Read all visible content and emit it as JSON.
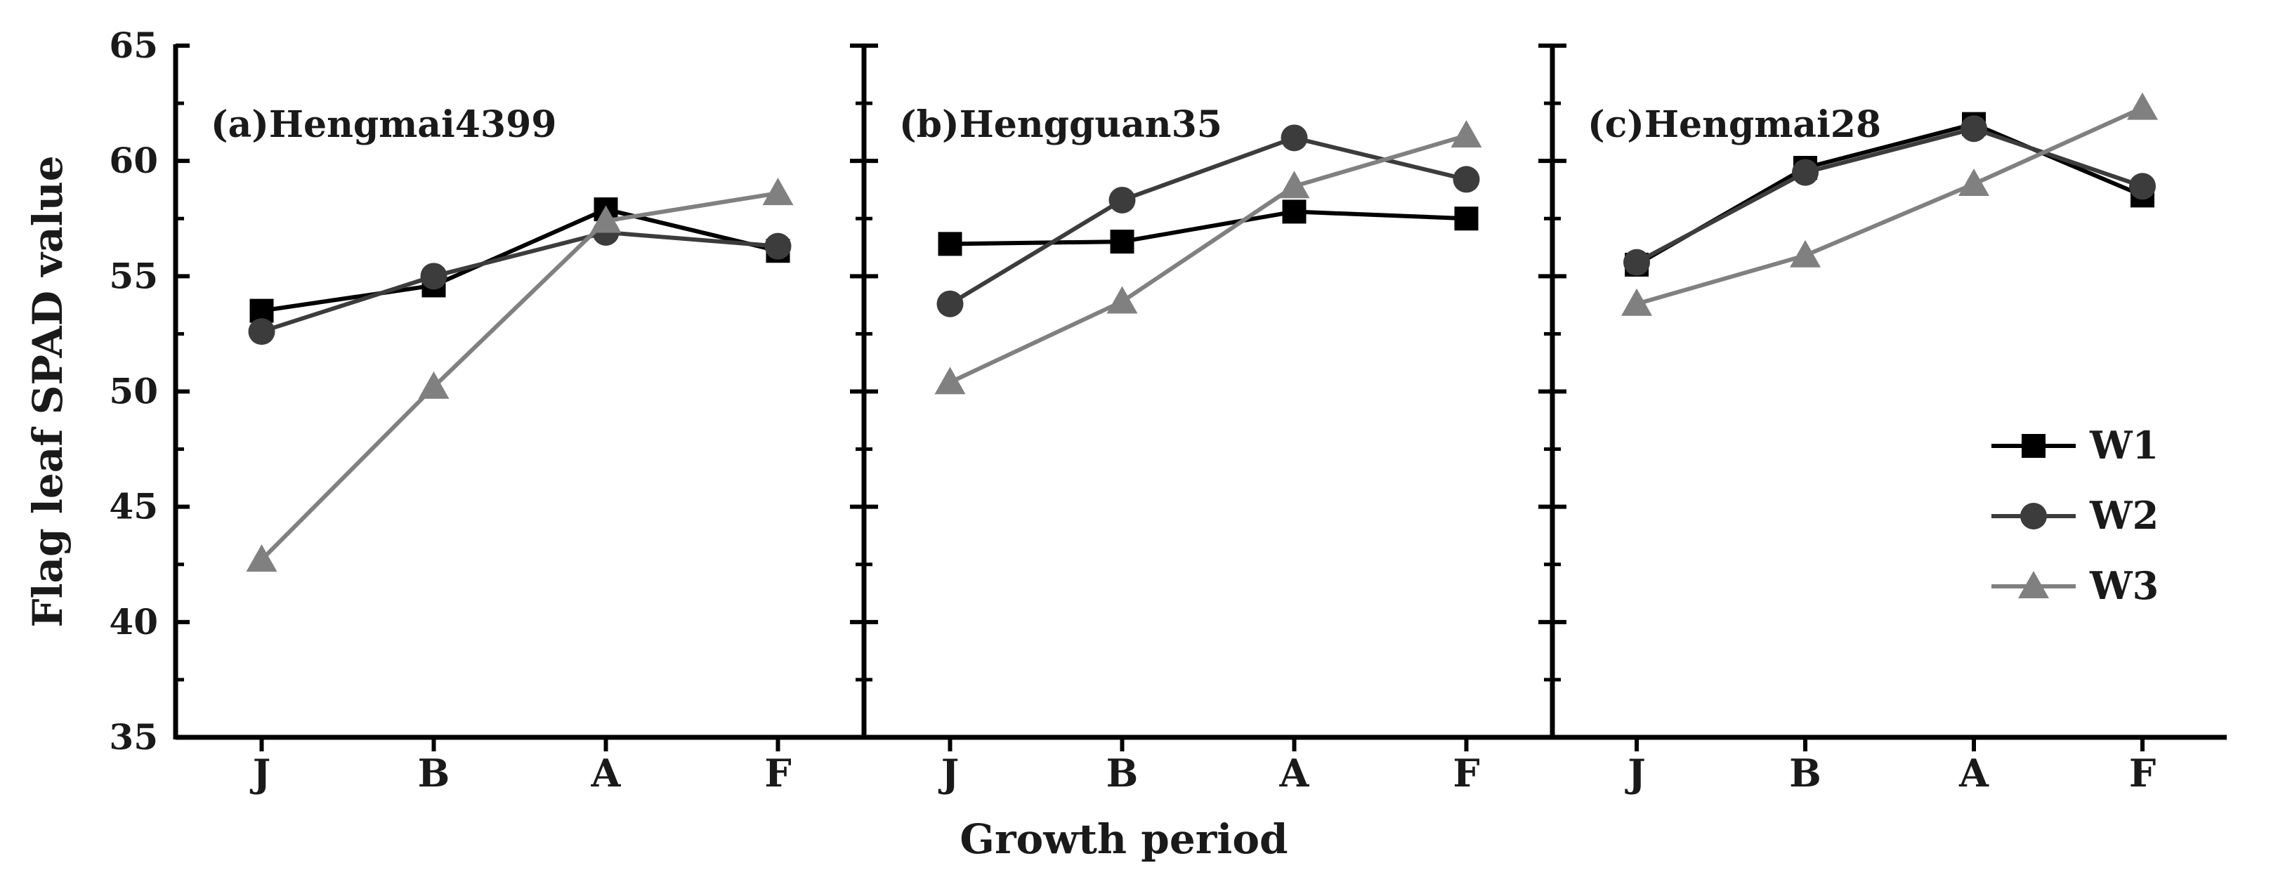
{
  "chart_data": {
    "type": "line",
    "xlabel": "Growth period",
    "ylabel": "Flag leaf SPAD value",
    "ylim": [
      35,
      65
    ],
    "yticks": [
      35,
      40,
      45,
      50,
      55,
      60,
      65
    ],
    "categories": [
      "J",
      "B",
      "A",
      "F"
    ],
    "legend": {
      "position": "right-middle",
      "entries": [
        {
          "name": "W1",
          "marker": "square",
          "color": "#000000"
        },
        {
          "name": "W2",
          "marker": "circle",
          "color": "#3c3c3c"
        },
        {
          "name": "W3",
          "marker": "triangle",
          "color": "#808080"
        }
      ]
    },
    "panels": [
      {
        "title": "(a)Hengmai4399",
        "series": [
          {
            "name": "W1",
            "values": [
              53.5,
              54.6,
              57.9,
              56.1
            ]
          },
          {
            "name": "W2",
            "values": [
              52.6,
              55.0,
              56.9,
              56.3
            ]
          },
          {
            "name": "W3",
            "values": [
              42.7,
              50.2,
              57.4,
              58.6
            ]
          }
        ]
      },
      {
        "title": "(b)Hengguan35",
        "series": [
          {
            "name": "W1",
            "values": [
              56.4,
              56.5,
              57.8,
              57.5
            ]
          },
          {
            "name": "W2",
            "values": [
              53.8,
              58.3,
              61.0,
              59.2
            ]
          },
          {
            "name": "W3",
            "values": [
              50.4,
              53.9,
              58.9,
              61.1
            ]
          }
        ]
      },
      {
        "title": "(c)Hengmai28",
        "series": [
          {
            "name": "W1",
            "values": [
              55.5,
              59.7,
              61.6,
              58.5
            ]
          },
          {
            "name": "W2",
            "values": [
              55.6,
              59.5,
              61.4,
              58.9
            ]
          },
          {
            "name": "W3",
            "values": [
              53.8,
              55.9,
              59.0,
              62.3
            ]
          }
        ]
      }
    ]
  }
}
